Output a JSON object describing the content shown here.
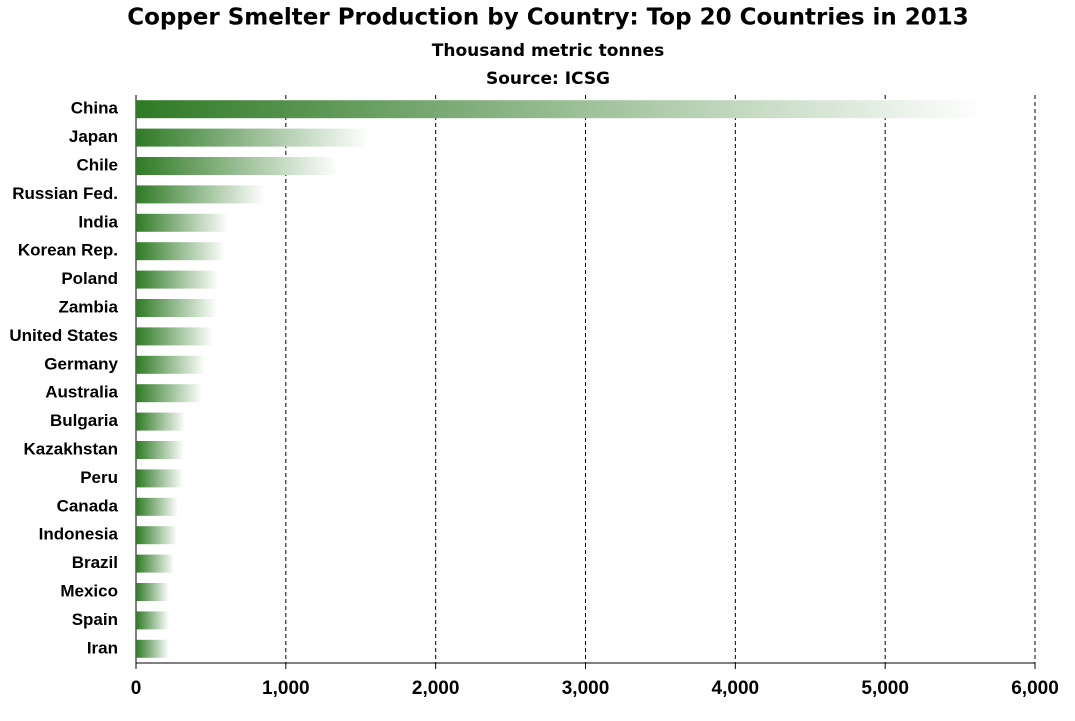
{
  "chart_data": {
    "type": "bar",
    "orientation": "horizontal",
    "title": "Copper Smelter Production by Country: Top 20 Countries in  2013",
    "subtitle": "Thousand metric tonnes",
    "source": "Source: ICSG",
    "categories": [
      "China",
      "Japan",
      "Chile",
      "Russian Fed.",
      "India",
      "Korean Rep.",
      "Poland",
      "Zambia",
      "United States",
      "Germany",
      "Australia",
      "Bulgaria",
      "Kazakhstan",
      "Peru",
      "Canada",
      "Indonesia",
      "Brazil",
      "Mexico",
      "Spain",
      "Iran"
    ],
    "values": [
      5670,
      1555,
      1350,
      860,
      615,
      595,
      550,
      540,
      515,
      460,
      440,
      330,
      320,
      315,
      280,
      275,
      255,
      220,
      220,
      220
    ],
    "color": "#2f7a25",
    "xlim": [
      0,
      6000
    ],
    "xticks": [
      0,
      {
        "value": 1000,
        "label": "1,000"
      },
      {
        "value": 2000,
        "label": "2,000"
      },
      {
        "value": 3000,
        "label": "3,000"
      },
      {
        "value": 4000,
        "label": "4,000"
      },
      {
        "value": 5000,
        "label": "5,000"
      },
      {
        "value": 6000,
        "label": "6,000"
      }
    ],
    "grid": true
  }
}
